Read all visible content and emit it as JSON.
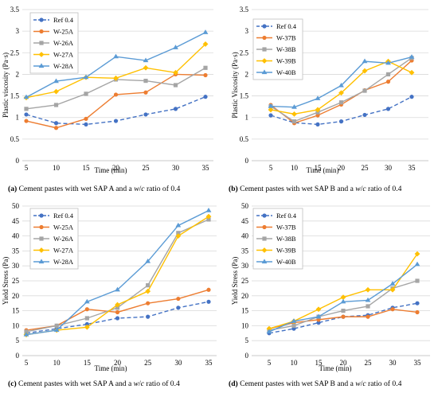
{
  "chart_data": [
    {
      "type": "line",
      "title": "",
      "xlabel": "Time (min)",
      "ylabel": "Plastic viscosity (Pa·s)",
      "x": [
        5,
        10,
        15,
        20,
        25,
        30,
        35
      ],
      "xlim": [
        5,
        35
      ],
      "ylim": [
        0,
        3.5
      ],
      "yticks": [
        "0",
        "0.5",
        "1",
        "1.5",
        "2",
        "2.5",
        "3",
        "3.5"
      ],
      "grid": true,
      "legend": "top-left",
      "series": [
        {
          "name": "Ref 0.4",
          "color": "#4472C4",
          "marker": "circle",
          "dash": true,
          "values": [
            1.07,
            0.87,
            0.84,
            0.92,
            1.07,
            1.2,
            1.48
          ]
        },
        {
          "name": "W-25A",
          "color": "#ED7D31",
          "marker": "circle",
          "dash": false,
          "values": [
            0.92,
            0.76,
            0.97,
            1.53,
            1.58,
            2.0,
            1.98
          ]
        },
        {
          "name": "W-26A",
          "color": "#A5A5A5",
          "marker": "square",
          "dash": false,
          "values": [
            1.2,
            1.29,
            1.55,
            1.88,
            1.85,
            1.75,
            2.15
          ]
        },
        {
          "name": "W-27A",
          "color": "#FFC000",
          "marker": "diamond",
          "dash": false,
          "values": [
            1.46,
            1.6,
            1.93,
            1.91,
            2.15,
            2.04,
            2.7
          ]
        },
        {
          "name": "W-28A",
          "color": "#5B9BD5",
          "marker": "triangle",
          "dash": false,
          "values": [
            1.47,
            1.84,
            1.93,
            2.41,
            2.32,
            2.62,
            2.97
          ]
        }
      ],
      "caption": {
        "label": "(a)",
        "text_pre": " Cement pastes with wet SAP A and a ",
        "w": "w",
        "slash": "/",
        "c": "c",
        "text_post": " ratio of 0.4"
      }
    },
    {
      "type": "line",
      "title": "",
      "xlabel": "Time (min)",
      "ylabel": "Plastic Viscosity (Pa·s)",
      "x": [
        5,
        10,
        15,
        20,
        25,
        30,
        35
      ],
      "xlim": [
        5,
        35
      ],
      "ylim": [
        0,
        3.5
      ],
      "yticks": [
        "0",
        "0.5",
        "1",
        "1.5",
        "2",
        "2.5",
        "3",
        "3.5"
      ],
      "grid": true,
      "legend": "top-left",
      "series": [
        {
          "name": "Ref 0.4",
          "color": "#4472C4",
          "marker": "circle",
          "dash": true,
          "values": [
            1.05,
            0.88,
            0.84,
            0.91,
            1.06,
            1.2,
            1.48
          ]
        },
        {
          "name": "W-37B",
          "color": "#ED7D31",
          "marker": "circle",
          "dash": false,
          "values": [
            1.29,
            0.87,
            1.05,
            1.3,
            1.63,
            1.83,
            2.32
          ]
        },
        {
          "name": "W-38B",
          "color": "#A5A5A5",
          "marker": "square",
          "dash": false,
          "values": [
            1.26,
            0.91,
            1.12,
            1.35,
            1.62,
            2.0,
            2.38
          ]
        },
        {
          "name": "W-39B",
          "color": "#FFC000",
          "marker": "diamond",
          "dash": false,
          "values": [
            1.18,
            1.08,
            1.18,
            1.57,
            2.08,
            2.3,
            2.04
          ]
        },
        {
          "name": "W-40B",
          "color": "#5B9BD5",
          "marker": "triangle",
          "dash": false,
          "values": [
            1.26,
            1.24,
            1.44,
            1.74,
            2.3,
            2.26,
            2.4
          ]
        }
      ],
      "caption": {
        "label": "(b)",
        "text_pre": " Cement pastes with wet SAP B and a ",
        "w": "w",
        "slash": "/",
        "c": "c",
        "text_post": " ratio of 0.4"
      }
    },
    {
      "type": "line",
      "title": "",
      "xlabel": "Time (min)",
      "ylabel": "Yield Stress (Pa)",
      "x": [
        5,
        10,
        15,
        20,
        25,
        30,
        35
      ],
      "xlim": [
        5,
        35
      ],
      "ylim": [
        0,
        50
      ],
      "yticks": [
        "0",
        "5",
        "10",
        "15",
        "20",
        "25",
        "30",
        "35",
        "40",
        "45",
        "50"
      ],
      "grid": true,
      "legend": "top-left",
      "series": [
        {
          "name": "Ref 0.4",
          "color": "#4472C4",
          "marker": "circle",
          "dash": true,
          "values": [
            7.5,
            9.0,
            10.5,
            12.5,
            13.0,
            16.0,
            18.0
          ]
        },
        {
          "name": "W-25A",
          "color": "#ED7D31",
          "marker": "circle",
          "dash": false,
          "values": [
            8.5,
            10.0,
            15.5,
            14.5,
            17.5,
            19.0,
            22.0
          ]
        },
        {
          "name": "W-26A",
          "color": "#A5A5A5",
          "marker": "square",
          "dash": false,
          "values": [
            8.0,
            10.0,
            12.5,
            16.0,
            23.5,
            41.0,
            45.5
          ]
        },
        {
          "name": "W-27A",
          "color": "#FFC000",
          "marker": "diamond",
          "dash": false,
          "values": [
            7.0,
            8.5,
            9.5,
            17.0,
            21.5,
            40.0,
            46.5
          ]
        },
        {
          "name": "W-28A",
          "color": "#5B9BD5",
          "marker": "triangle",
          "dash": false,
          "values": [
            7.0,
            8.5,
            18.0,
            22.0,
            31.5,
            43.5,
            48.5
          ]
        }
      ],
      "caption": {
        "label": "(c)",
        "text_pre": " Cement pastes with wet SAP A and a ",
        "w": "w",
        "slash": "/",
        "c": "c",
        "text_post": " ratio of 0.4"
      }
    },
    {
      "type": "line",
      "title": "",
      "xlabel": "Time (min)",
      "ylabel": "Yield Stress (Pa)",
      "x": [
        5,
        10,
        15,
        20,
        25,
        30,
        35
      ],
      "xlim": [
        5,
        35
      ],
      "ylim": [
        0,
        50
      ],
      "yticks": [
        "0",
        "5",
        "10",
        "15",
        "20",
        "25",
        "30",
        "35",
        "40",
        "45",
        "50"
      ],
      "grid": true,
      "legend": "top-left",
      "series": [
        {
          "name": "Ref 0.4",
          "color": "#4472C4",
          "marker": "circle",
          "dash": true,
          "values": [
            7.5,
            9.0,
            11.0,
            13.0,
            13.5,
            16.0,
            17.5
          ]
        },
        {
          "name": "W-37B",
          "color": "#ED7D31",
          "marker": "circle",
          "dash": false,
          "values": [
            9.0,
            11.0,
            12.0,
            13.0,
            13.0,
            15.5,
            14.5
          ]
        },
        {
          "name": "W-38B",
          "color": "#A5A5A5",
          "marker": "square",
          "dash": false,
          "values": [
            8.5,
            10.0,
            13.0,
            15.0,
            16.5,
            22.5,
            25.0
          ]
        },
        {
          "name": "W-39B",
          "color": "#FFC000",
          "marker": "diamond",
          "dash": false,
          "values": [
            9.0,
            11.5,
            15.5,
            19.5,
            22.0,
            22.0,
            34.0
          ]
        },
        {
          "name": "W-40B",
          "color": "#5B9BD5",
          "marker": "triangle",
          "dash": false,
          "values": [
            8.0,
            11.5,
            13.0,
            18.0,
            18.5,
            24.0,
            30.5
          ]
        }
      ],
      "caption": {
        "label": "(d)",
        "text_pre": " Cement pastes with wet SAP B and a ",
        "w": "w",
        "slash": "/",
        "c": "c",
        "text_post": " ratio of 0.4"
      }
    }
  ]
}
